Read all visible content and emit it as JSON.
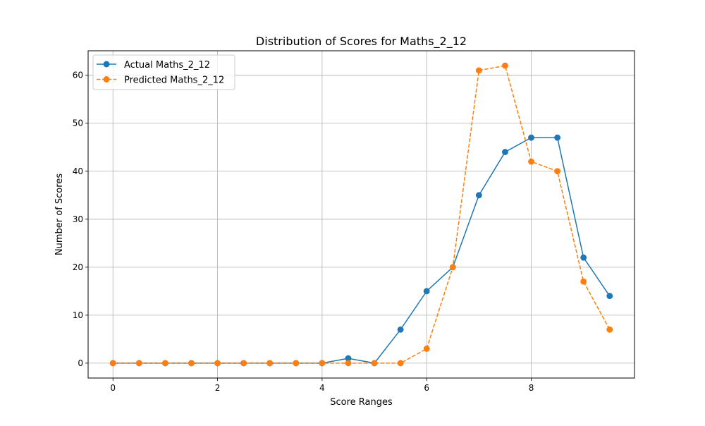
{
  "chart_data": {
    "type": "line",
    "title": "Distribution of Scores for Maths_2_12",
    "xlabel": "Score Ranges",
    "ylabel": "Number of Scores",
    "xlim": [
      -0.475,
      9.975
    ],
    "ylim": [
      -3.1,
      65.1
    ],
    "xticks": [
      0,
      2,
      4,
      6,
      8
    ],
    "yticks": [
      0,
      10,
      20,
      30,
      40,
      50,
      60
    ],
    "grid": true,
    "legend_position": "top-left",
    "x": [
      0,
      0.5,
      1,
      1.5,
      2,
      2.5,
      3,
      3.5,
      4,
      4.5,
      5,
      5.5,
      6,
      6.5,
      7,
      7.5,
      8,
      8.5,
      9,
      9.5
    ],
    "series": [
      {
        "name": "Actual Maths_2_12",
        "color": "#1f77b4",
        "line_style": "solid",
        "marker": "circle",
        "values": [
          0,
          0,
          0,
          0,
          0,
          0,
          0,
          0,
          0,
          1,
          0,
          7,
          15,
          20,
          35,
          44,
          47,
          47,
          22,
          14
        ]
      },
      {
        "name": "Predicted Maths_2_12",
        "color": "#ff7f0e",
        "line_style": "dashed",
        "marker": "circle",
        "values": [
          0,
          0,
          0,
          0,
          0,
          0,
          0,
          0,
          0,
          0,
          0,
          0,
          3,
          20,
          61,
          62,
          42,
          40,
          17,
          7
        ]
      }
    ]
  }
}
